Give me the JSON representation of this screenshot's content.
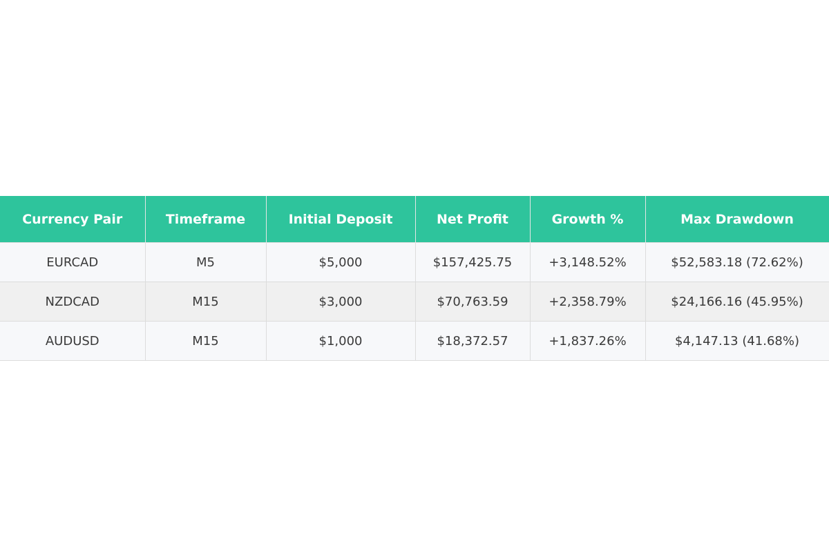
{
  "table": {
    "header": [
      "Currency Pair",
      "Timeframe",
      "Initial Deposit",
      "Net Profit",
      "Growth %",
      "Max Drawdown"
    ],
    "rows": [
      [
        "EURCAD",
        "M5",
        "$5,000",
        "$157,425.75",
        "+3,148.52%",
        "$52,583.18 (72.62%)"
      ],
      [
        "NZDCAD",
        "M15",
        "$3,000",
        "$70,763.59",
        "+2,358.79%",
        "$24,166.16 (45.95%)"
      ],
      [
        "AUDUSD",
        "M15",
        "$1,000",
        "$18,372.57",
        "+1,837.26%",
        "$4,147.13 (41.68%)"
      ]
    ]
  }
}
